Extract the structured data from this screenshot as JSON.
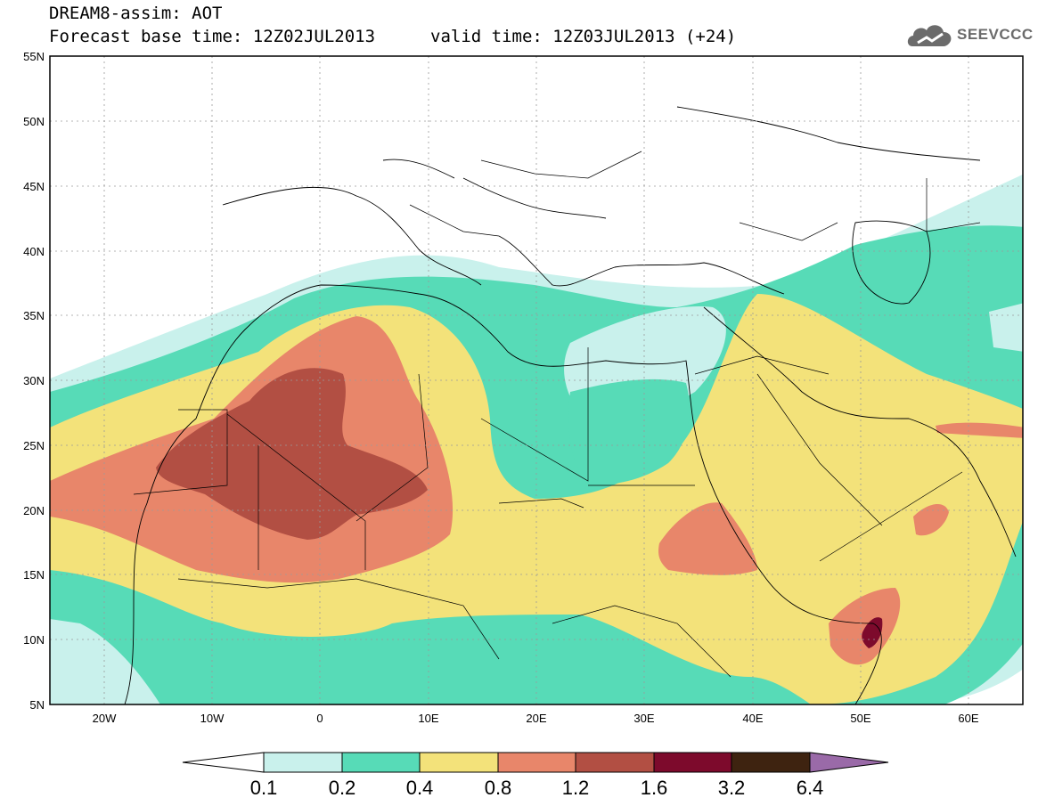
{
  "header": {
    "line1": "DREAM8-assim: AOT",
    "line2": "Forecast base time: 12Z02JUL2013",
    "valid": "valid time: 12Z03JUL2013 (+24)"
  },
  "logo": {
    "text": "SEEVCCC",
    "icon": "cloud-icon"
  },
  "map": {
    "lon_range": [
      -25,
      65
    ],
    "lat_range": [
      5,
      55
    ],
    "lat_ticks": [
      "55N",
      "50N",
      "45N",
      "40N",
      "35N",
      "30N",
      "25N",
      "20N",
      "15N",
      "10N",
      "5N"
    ],
    "lon_ticks": [
      "20W",
      "10W",
      "0",
      "10E",
      "20E",
      "30E",
      "40E",
      "50E",
      "60E"
    ]
  },
  "colorbar": {
    "labels": [
      "0.1",
      "0.2",
      "0.4",
      "0.8",
      "1.2",
      "1.6",
      "3.2",
      "6.4"
    ],
    "colors": [
      "#c9f1ec",
      "#57dbb7",
      "#f3e27a",
      "#e8866a",
      "#b24f43",
      "#7d0a2c",
      "#3e2310"
    ],
    "under_color": "#ffffff",
    "over_color": "#9a6aa8"
  }
}
